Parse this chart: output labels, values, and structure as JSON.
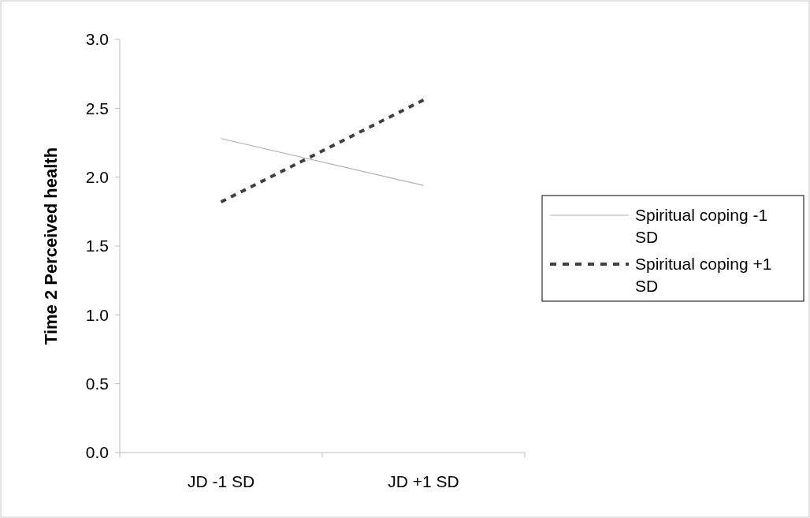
{
  "chart_data": {
    "type": "line",
    "ylabel": "Time 2 Perceived health",
    "categories": [
      "JD -1 SD",
      "JD +1 SD"
    ],
    "series": [
      {
        "name": "Spiritual coping -1 SD",
        "color": "#b0b0b0",
        "values": [
          2.28,
          1.94
        ],
        "line_style": "solid"
      },
      {
        "name": "Spiritual coping +1 SD",
        "color": "#404040",
        "values": [
          1.82,
          2.56
        ],
        "line_style": "dashed"
      }
    ],
    "ylim": [
      0,
      3
    ],
    "yticks": [
      {
        "value": 0,
        "label": "0.0"
      },
      {
        "value": 0.5,
        "label": "0.5"
      },
      {
        "value": 1,
        "label": "1.0"
      },
      {
        "value": 1.5,
        "label": "1.5"
      },
      {
        "value": 2,
        "label": "2.0"
      },
      {
        "value": 2.5,
        "label": "2.5"
      },
      {
        "value": 3,
        "label": "3.0"
      }
    ],
    "legend": "right",
    "marker": "none",
    "grid": false
  }
}
